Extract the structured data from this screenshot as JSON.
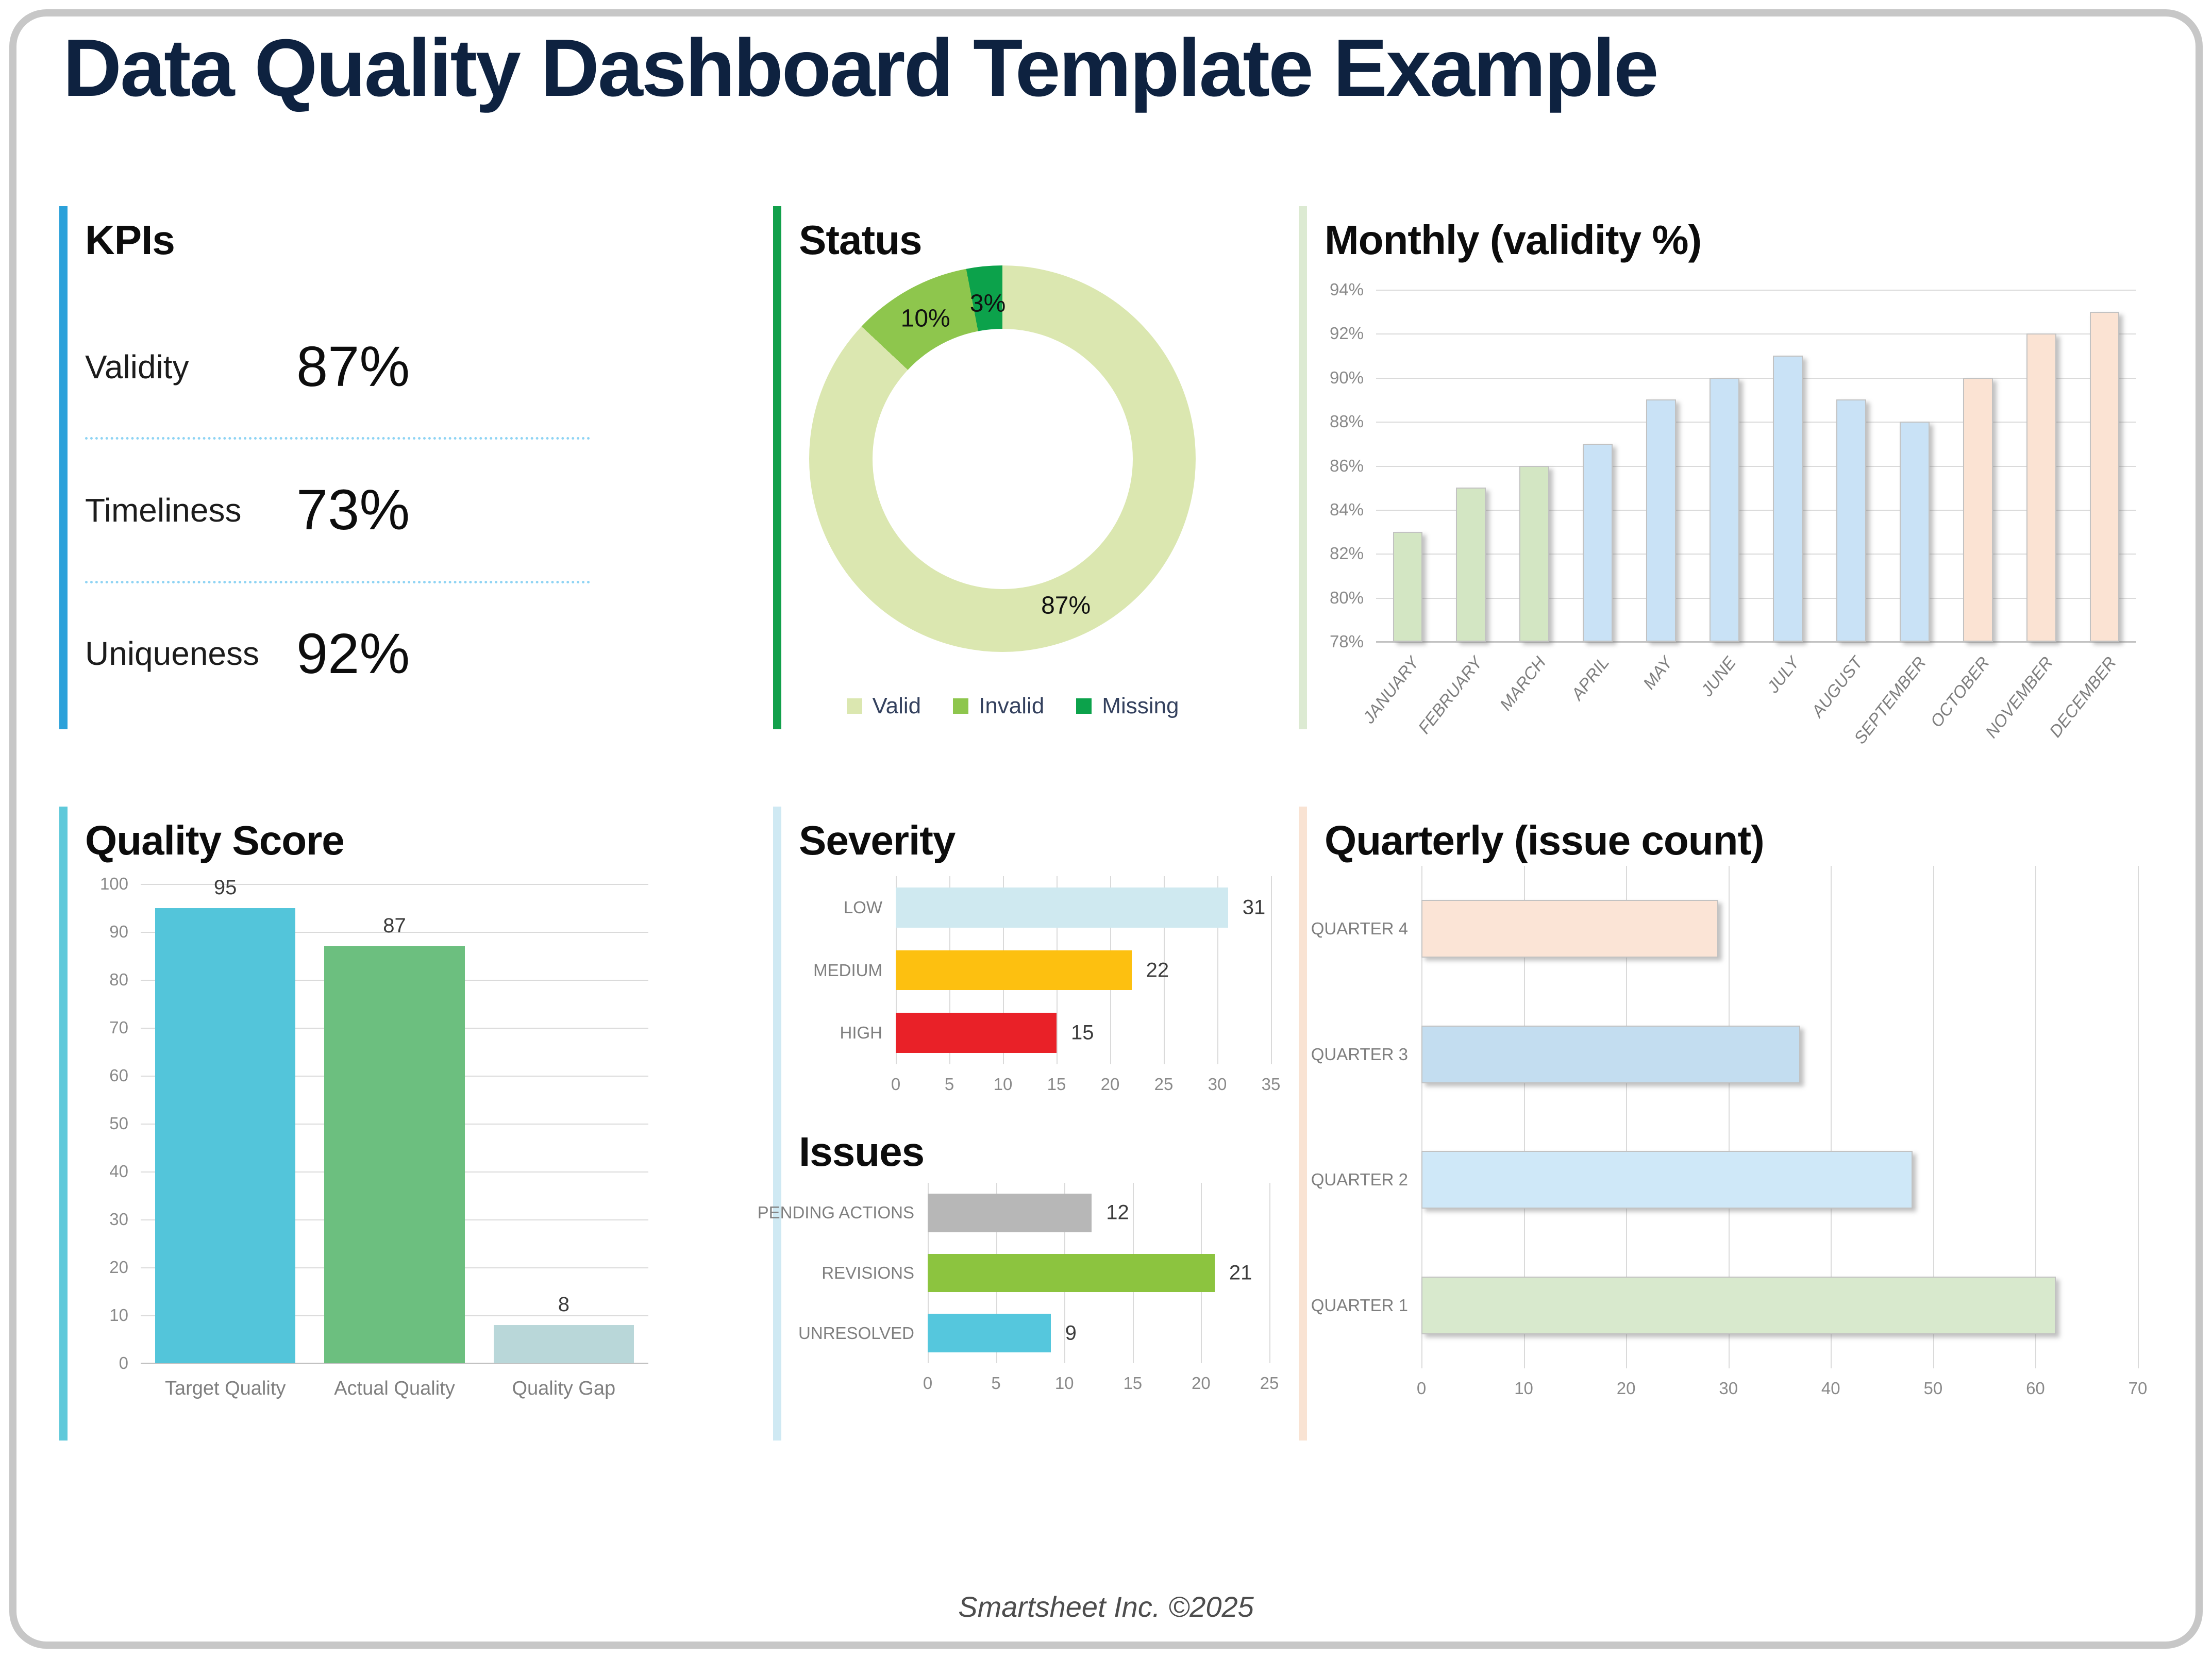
{
  "page": {
    "title": "Data Quality Dashboard Template Example",
    "footer": "Smartsheet Inc. ©2025",
    "title_color": "#0e2240",
    "card_border_color": "#c7c7c7",
    "accents": {
      "kpis": "#2ba1da",
      "status": "#12a04b",
      "monthly": "#dcead2",
      "quality": "#5fc9da",
      "sevissues": "#cfe9f3",
      "quarterly": "#f9e3d3"
    }
  },
  "kpis": {
    "title": "KPIs",
    "items": [
      {
        "label": "Validity",
        "value": "87%"
      },
      {
        "label": "Timeliness",
        "value": "73%"
      },
      {
        "label": "Uniqueness",
        "value": "92%"
      }
    ]
  },
  "chart_data": [
    {
      "id": "status",
      "type": "pie",
      "donut": true,
      "title": "Status",
      "labels": [
        "Valid",
        "Invalid",
        "Missing"
      ],
      "values": [
        87,
        10,
        3
      ],
      "unit": "%",
      "data_labels": [
        "87%",
        "10%",
        "3%"
      ],
      "colors": [
        "#dbe7b0",
        "#8ec64d",
        "#0ca24b"
      ],
      "legend_position": "bottom"
    },
    {
      "id": "monthly",
      "type": "bar",
      "title": "Monthly (validity %)",
      "categories": [
        "JANUARY",
        "FEBRUARY",
        "MARCH",
        "APRIL",
        "MAY",
        "JUNE",
        "JULY",
        "AUGUST",
        "SEPTEMBER",
        "OCTOBER",
        "NOVEMBER",
        "DECEMBER"
      ],
      "values": [
        83,
        85,
        86,
        87,
        89,
        90,
        91,
        89,
        88,
        90,
        92,
        93
      ],
      "ylim": [
        78,
        94
      ],
      "ystep": 2,
      "ytick_suffix": "%",
      "grid": true,
      "colors": [
        "#d3e6c3",
        "#d3e6c3",
        "#d3e6c3",
        "#c9e2f6",
        "#c9e2f6",
        "#c9e2f6",
        "#c9e2f6",
        "#c9e2f6",
        "#c9e2f6",
        "#fbe3d3",
        "#fbe3d3",
        "#fbe3d3"
      ]
    },
    {
      "id": "quality",
      "type": "bar",
      "title": "Quality Score",
      "categories": [
        "Target Quality",
        "Actual Quality",
        "Quality Gap"
      ],
      "values": [
        95,
        87,
        8
      ],
      "ylim": [
        0,
        100
      ],
      "ystep": 10,
      "grid": true,
      "colors": [
        "#53c5da",
        "#6cbf7f",
        "#b9d7d9"
      ]
    },
    {
      "id": "severity",
      "type": "bar-horizontal",
      "title": "Severity",
      "categories": [
        "LOW",
        "MEDIUM",
        "HIGH"
      ],
      "values": [
        31,
        22,
        15
      ],
      "xlim": [
        0,
        35
      ],
      "xstep": 5,
      "grid": true,
      "colors": [
        "#cfe9f0",
        "#fdc010",
        "#e92128"
      ]
    },
    {
      "id": "issues",
      "type": "bar-horizontal",
      "title": "Issues",
      "categories": [
        "PENDING ACTIONS",
        "REVISIONS",
        "UNRESOLVED"
      ],
      "values": [
        12,
        21,
        9
      ],
      "xlim": [
        0,
        25
      ],
      "xstep": 5,
      "grid": true,
      "colors": [
        "#b7b7b7",
        "#8cc43f",
        "#55c7dd"
      ]
    },
    {
      "id": "quarterly",
      "type": "bar-horizontal",
      "title": "Quarterly (issue count)",
      "categories": [
        "QUARTER 4",
        "QUARTER 3",
        "QUARTER 2",
        "QUARTER 1"
      ],
      "values": [
        29,
        37,
        48,
        62
      ],
      "xlim": [
        0,
        70
      ],
      "xstep": 10,
      "grid": true,
      "colors": [
        "#fbe4d6",
        "#c3ddf0",
        "#cfe8f8",
        "#d8e9cd"
      ]
    }
  ]
}
